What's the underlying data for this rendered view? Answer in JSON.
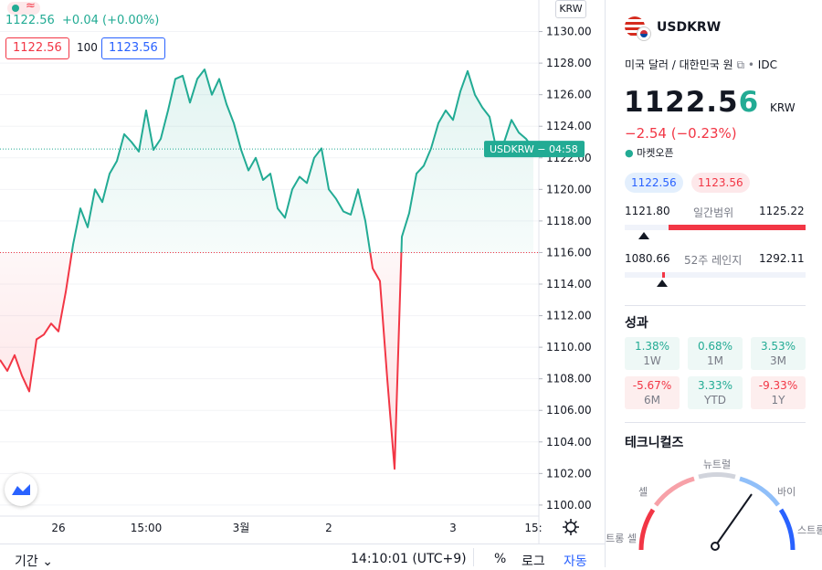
{
  "chart_data": {
    "type": "line",
    "categories": [
      null,
      null,
      null,
      null,
      null,
      null,
      null,
      null,
      "26",
      null,
      null,
      null,
      null,
      null,
      null,
      null,
      null,
      null,
      null,
      null,
      "15:00",
      null,
      null,
      null,
      null,
      null,
      null,
      null,
      null,
      null,
      null,
      null,
      null,
      "3월",
      null,
      null,
      null,
      null,
      null,
      null,
      null,
      null,
      null,
      null,
      null,
      "2",
      null,
      null,
      null,
      null,
      null,
      null,
      null,
      null,
      null,
      null,
      null,
      null,
      null,
      null,
      null,
      null,
      "3",
      null,
      null,
      null,
      null,
      null,
      null,
      null,
      null,
      null,
      null,
      "15:"
    ],
    "values": [
      1109.2,
      1108.5,
      1109.5,
      1108.2,
      1107.2,
      1110.5,
      1110.8,
      1111.5,
      1111,
      1113.5,
      1116.5,
      1118.8,
      1117.6,
      1120,
      1119.2,
      1121,
      1121.8,
      1123.5,
      1123,
      1122.4,
      1125,
      1122.5,
      1123.2,
      1125,
      1127,
      1127.2,
      1125.5,
      1127,
      1127.6,
      1126,
      1127,
      1125.4,
      1124.2,
      1122.5,
      1121.2,
      1122,
      1120.6,
      1121,
      1118.8,
      1118.2,
      1120,
      1120.8,
      1120.4,
      1122,
      1122.6,
      1120,
      1119.4,
      1118.6,
      1118.4,
      1120,
      1118,
      1115,
      1114.2,
      1108,
      1102.3,
      1117,
      1118.5,
      1121,
      1121.5,
      1122.6,
      1124.2,
      1125,
      1124.4,
      1126.2,
      1127.5,
      1126,
      1125.2,
      1124.6,
      1122.4,
      1123,
      1124.4,
      1123.6,
      1123.2,
      1122.56
    ],
    "color": "#22ab94",
    "below_color": "#f23645",
    "baseline": 1116,
    "ylim": [
      1099.3,
      1132
    ],
    "yticks": [
      {
        "value": 1100,
        "label": "1100.00"
      },
      {
        "value": 1102,
        "label": "1102.00"
      },
      {
        "value": 1104,
        "label": "1104.00"
      },
      {
        "value": 1106,
        "label": "1106.00"
      },
      {
        "value": 1108,
        "label": "1108.00"
      },
      {
        "value": 1110,
        "label": "1110.00"
      },
      {
        "value": 1112,
        "label": "1112.00"
      },
      {
        "value": 1114,
        "label": "1114.00"
      },
      {
        "value": 1116,
        "label": "1116.00"
      },
      {
        "value": 1118,
        "label": "1118.00"
      },
      {
        "value": 1120,
        "label": "1120.00"
      },
      {
        "value": 1122,
        "label": "1122.00"
      },
      {
        "value": 1124,
        "label": "1124.00"
      },
      {
        "value": 1126,
        "label": "1126.00"
      },
      {
        "value": 1128,
        "label": "1128.00"
      },
      {
        "value": 1130,
        "label": "1130.00"
      }
    ],
    "grid": true,
    "y_unit": "KRW",
    "price_label": "USDKRW − 04:58"
  },
  "header": {
    "quote": "1122.56",
    "change": "+0.04 (+0.00%)",
    "bid": "1122.56",
    "spread": "100",
    "ask": "1123.56"
  },
  "bottom_bar": {
    "period": "기간",
    "time": "14:10:01 (UTC+9)",
    "percent": "%",
    "log": "로그",
    "auto": "자동"
  },
  "panel": {
    "symbol": "USDKRW",
    "description": "미국 달러 / 대한민국 원",
    "exchange": "IDC",
    "price_main": "1122.5",
    "price_last": "6",
    "currency": "KRW",
    "change": "−2.54 (−0.23%)",
    "status": "마켓오픈",
    "bid": "1122.56",
    "ask": "1123.56",
    "day_range": {
      "low": "1121.80",
      "label": "일간범위",
      "high": "1125.22"
    },
    "week52_range": {
      "low": "1080.66",
      "label": "52주 레인지",
      "high": "1292.11"
    },
    "performance_title": "성과",
    "performance": [
      {
        "value": "1.38%",
        "period": "1W"
      },
      {
        "value": "0.68%",
        "period": "1M"
      },
      {
        "value": "3.53%",
        "period": "3M"
      },
      {
        "value": "-5.67%",
        "period": "6M"
      },
      {
        "value": "3.33%",
        "period": "YTD"
      },
      {
        "value": "-9.33%",
        "period": "1Y"
      }
    ],
    "technicals_title": "테크니컬즈",
    "gauge": {
      "strong_sell": "스트롱 셀",
      "sell": "셀",
      "neutral": "뉴트럴",
      "buy": "바이",
      "strong_buy": "스트롱 바이"
    }
  }
}
